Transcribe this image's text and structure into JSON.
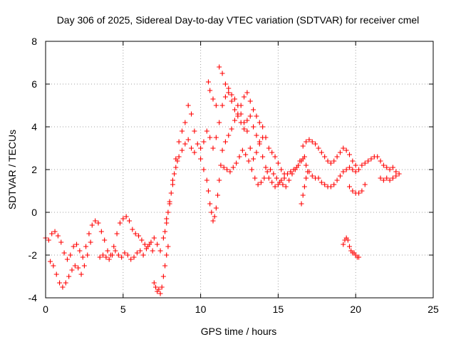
{
  "chart_data": {
    "type": "scatter",
    "title": "Day 306 of 2025, Sidereal Day-to-day VTEC variation (SDTVAR) for receiver cmel",
    "xlabel": "GPS time / hours",
    "ylabel": "SDTVAR / TECUs",
    "xlim": [
      0,
      25
    ],
    "ylim": [
      -4,
      8
    ],
    "xticks": [
      "0",
      "5",
      "10",
      "15",
      "20",
      "25"
    ],
    "yticks": [
      "-4",
      "-2",
      "0",
      "2",
      "4",
      "6",
      "8"
    ],
    "grid": true,
    "marker": "+",
    "color": "#ff0000",
    "series": [
      {
        "name": "SDTVAR",
        "points": [
          [
            0.0,
            -1.2
          ],
          [
            0.2,
            -1.3
          ],
          [
            0.4,
            -1.0
          ],
          [
            0.6,
            -0.9
          ],
          [
            0.8,
            -1.1
          ],
          [
            1.0,
            -1.4
          ],
          [
            1.2,
            -1.9
          ],
          [
            1.4,
            -2.2
          ],
          [
            1.6,
            -2.0
          ],
          [
            1.8,
            -1.6
          ],
          [
            2.0,
            -1.5
          ],
          [
            2.2,
            -1.8
          ],
          [
            2.4,
            -2.1
          ],
          [
            2.6,
            -1.6
          ],
          [
            2.8,
            -1.0
          ],
          [
            3.0,
            -0.6
          ],
          [
            3.2,
            -0.4
          ],
          [
            3.4,
            -0.5
          ],
          [
            3.6,
            -0.9
          ],
          [
            3.8,
            -1.3
          ],
          [
            4.0,
            -1.8
          ],
          [
            4.2,
            -2.0
          ],
          [
            4.4,
            -1.6
          ],
          [
            4.6,
            -1.0
          ],
          [
            4.8,
            -0.5
          ],
          [
            5.0,
            -0.3
          ],
          [
            5.2,
            -0.2
          ],
          [
            5.4,
            -0.4
          ],
          [
            5.6,
            -0.8
          ],
          [
            5.8,
            -1.0
          ],
          [
            6.0,
            -1.1
          ],
          [
            6.2,
            -1.3
          ],
          [
            6.4,
            -1.5
          ],
          [
            6.6,
            -1.6
          ],
          [
            6.8,
            -1.4
          ],
          [
            7.0,
            -1.2
          ],
          [
            7.2,
            -1.5
          ],
          [
            7.4,
            -1.8
          ],
          [
            7.6,
            -1.2
          ],
          [
            7.8,
            -0.3
          ],
          [
            8.0,
            0.5
          ],
          [
            8.2,
            1.5
          ],
          [
            8.4,
            2.5
          ],
          [
            8.6,
            3.3
          ],
          [
            8.8,
            3.8
          ],
          [
            9.0,
            4.2
          ],
          [
            9.2,
            5.0
          ],
          [
            9.4,
            4.6
          ],
          [
            9.6,
            3.8
          ],
          [
            9.8,
            3.2
          ],
          [
            10.0,
            3.0
          ],
          [
            10.2,
            3.3
          ],
          [
            10.4,
            3.8
          ],
          [
            10.6,
            3.5
          ],
          [
            10.8,
            3.0
          ],
          [
            11.0,
            3.5
          ],
          [
            11.2,
            4.2
          ],
          [
            11.4,
            5.0
          ],
          [
            11.6,
            5.4
          ],
          [
            11.8,
            5.6
          ],
          [
            12.0,
            5.5
          ],
          [
            12.2,
            5.3
          ],
          [
            12.4,
            5.0
          ],
          [
            12.6,
            4.6
          ],
          [
            12.8,
            4.2
          ],
          [
            13.0,
            3.8
          ],
          [
            13.2,
            3.0
          ],
          [
            13.4,
            2.5
          ],
          [
            13.6,
            2.8
          ],
          [
            13.8,
            3.2
          ],
          [
            14.0,
            2.6
          ],
          [
            14.2,
            2.1
          ],
          [
            14.4,
            1.6
          ],
          [
            14.6,
            1.4
          ],
          [
            14.8,
            1.2
          ],
          [
            15.0,
            1.3
          ],
          [
            15.2,
            1.5
          ],
          [
            15.4,
            1.6
          ],
          [
            15.6,
            1.8
          ],
          [
            15.8,
            1.9
          ],
          [
            16.0,
            2.0
          ],
          [
            16.2,
            2.1
          ],
          [
            16.4,
            2.4
          ],
          [
            16.6,
            2.5
          ],
          [
            16.8,
            2.2
          ],
          [
            17.0,
            1.9
          ],
          [
            17.2,
            1.7
          ],
          [
            17.4,
            1.6
          ],
          [
            17.6,
            1.6
          ],
          [
            17.8,
            1.4
          ],
          [
            18.0,
            1.3
          ],
          [
            18.2,
            1.2
          ],
          [
            18.4,
            1.2
          ],
          [
            18.6,
            1.3
          ],
          [
            18.8,
            1.5
          ],
          [
            19.0,
            1.7
          ],
          [
            19.2,
            1.9
          ],
          [
            19.4,
            2.0
          ],
          [
            19.6,
            2.1
          ],
          [
            19.8,
            2.0
          ],
          [
            20.0,
            1.9
          ],
          [
            20.2,
            2.0
          ],
          [
            20.4,
            2.2
          ],
          [
            20.6,
            2.3
          ],
          [
            20.8,
            2.4
          ],
          [
            21.0,
            2.5
          ],
          [
            21.2,
            2.6
          ],
          [
            21.4,
            2.6
          ],
          [
            21.6,
            2.4
          ],
          [
            21.8,
            2.2
          ],
          [
            22.0,
            2.1
          ],
          [
            22.2,
            2.0
          ],
          [
            22.4,
            2.1
          ],
          [
            22.6,
            1.9
          ],
          [
            22.8,
            1.8
          ],
          [
            0.3,
            -2.3
          ],
          [
            0.5,
            -2.5
          ],
          [
            0.7,
            -2.9
          ],
          [
            0.9,
            -3.3
          ],
          [
            1.1,
            -3.5
          ],
          [
            1.3,
            -3.3
          ],
          [
            1.5,
            -3.0
          ],
          [
            1.7,
            -2.7
          ],
          [
            1.9,
            -2.5
          ],
          [
            2.1,
            -2.6
          ],
          [
            2.3,
            -2.9
          ],
          [
            2.5,
            -2.5
          ],
          [
            2.7,
            -2.0
          ],
          [
            2.9,
            -1.4
          ],
          [
            3.5,
            -2.1
          ],
          [
            3.7,
            -2.0
          ],
          [
            3.9,
            -2.1
          ],
          [
            4.1,
            -2.2
          ],
          [
            4.3,
            -2.0
          ],
          [
            4.5,
            -1.8
          ],
          [
            4.7,
            -2.0
          ],
          [
            4.9,
            -2.1
          ],
          [
            5.1,
            -1.9
          ],
          [
            5.3,
            -2.0
          ],
          [
            5.5,
            -2.2
          ],
          [
            5.7,
            -2.1
          ],
          [
            5.9,
            -1.9
          ],
          [
            6.1,
            -1.8
          ],
          [
            6.3,
            -2.0
          ],
          [
            6.5,
            -1.7
          ],
          [
            6.7,
            -1.5
          ],
          [
            6.9,
            -1.8
          ],
          [
            7.0,
            -3.3
          ],
          [
            7.1,
            -3.5
          ],
          [
            7.2,
            -3.7
          ],
          [
            7.3,
            -3.6
          ],
          [
            7.4,
            -3.8
          ],
          [
            7.5,
            -3.5
          ],
          [
            7.6,
            -3.0
          ],
          [
            7.7,
            -2.5
          ],
          [
            7.8,
            -2.0
          ],
          [
            7.9,
            -1.6
          ],
          [
            7.7,
            -0.9
          ],
          [
            7.8,
            -0.5
          ],
          [
            7.9,
            0.0
          ],
          [
            8.0,
            0.4
          ],
          [
            8.1,
            0.9
          ],
          [
            8.2,
            1.3
          ],
          [
            8.3,
            1.8
          ],
          [
            8.4,
            2.1
          ],
          [
            8.5,
            2.4
          ],
          [
            8.6,
            2.6
          ],
          [
            8.8,
            2.9
          ],
          [
            9.0,
            3.2
          ],
          [
            9.2,
            3.4
          ],
          [
            9.4,
            3.0
          ],
          [
            9.6,
            2.8
          ],
          [
            10.0,
            2.5
          ],
          [
            10.2,
            2.0
          ],
          [
            10.4,
            1.5
          ],
          [
            10.5,
            1.0
          ],
          [
            10.6,
            0.4
          ],
          [
            10.7,
            0.0
          ],
          [
            10.8,
            -0.4
          ],
          [
            10.9,
            -0.2
          ],
          [
            11.0,
            0.2
          ],
          [
            11.1,
            0.8
          ],
          [
            11.2,
            1.5
          ],
          [
            11.3,
            2.2
          ],
          [
            11.4,
            2.9
          ],
          [
            11.6,
            3.3
          ],
          [
            11.8,
            3.6
          ],
          [
            12.0,
            3.9
          ],
          [
            12.2,
            4.3
          ],
          [
            12.4,
            4.5
          ],
          [
            12.6,
            4.2
          ],
          [
            12.8,
            3.9
          ],
          [
            13.0,
            4.3
          ],
          [
            13.2,
            4.5
          ],
          [
            13.4,
            4.0
          ],
          [
            13.6,
            3.6
          ],
          [
            13.8,
            3.3
          ],
          [
            14.0,
            3.5
          ],
          [
            10.5,
            6.1
          ],
          [
            10.6,
            5.7
          ],
          [
            10.8,
            5.3
          ],
          [
            11.0,
            5.0
          ],
          [
            11.2,
            6.8
          ],
          [
            11.4,
            6.5
          ],
          [
            11.6,
            6.0
          ],
          [
            11.8,
            5.8
          ],
          [
            12.0,
            5.2
          ],
          [
            12.2,
            4.8
          ],
          [
            12.4,
            4.6
          ],
          [
            12.6,
            5.0
          ],
          [
            12.8,
            5.4
          ],
          [
            13.0,
            5.6
          ],
          [
            13.2,
            5.2
          ],
          [
            13.4,
            4.8
          ],
          [
            13.6,
            4.5
          ],
          [
            13.8,
            4.2
          ],
          [
            14.0,
            4.0
          ],
          [
            14.2,
            3.5
          ],
          [
            14.4,
            3.0
          ],
          [
            14.6,
            2.8
          ],
          [
            14.8,
            2.6
          ],
          [
            15.0,
            2.3
          ],
          [
            15.2,
            2.0
          ],
          [
            15.4,
            1.8
          ],
          [
            11.5,
            2.1
          ],
          [
            11.7,
            2.0
          ],
          [
            11.9,
            1.9
          ],
          [
            12.1,
            2.1
          ],
          [
            12.3,
            2.3
          ],
          [
            12.5,
            2.6
          ],
          [
            12.7,
            2.9
          ],
          [
            12.9,
            2.7
          ],
          [
            13.1,
            2.4
          ],
          [
            13.3,
            2.0
          ],
          [
            13.5,
            1.6
          ],
          [
            13.7,
            1.3
          ],
          [
            13.9,
            1.4
          ],
          [
            14.1,
            1.6
          ],
          [
            14.3,
            1.9
          ],
          [
            14.5,
            2.0
          ],
          [
            14.7,
            1.8
          ],
          [
            14.9,
            1.6
          ],
          [
            15.1,
            1.4
          ],
          [
            15.3,
            1.3
          ],
          [
            15.5,
            1.2
          ],
          [
            15.7,
            1.5
          ],
          [
            15.9,
            1.8
          ],
          [
            16.1,
            2.0
          ],
          [
            16.3,
            2.2
          ],
          [
            16.5,
            2.4
          ],
          [
            16.7,
            2.6
          ],
          [
            16.6,
            3.1
          ],
          [
            16.8,
            3.3
          ],
          [
            17.0,
            3.4
          ],
          [
            17.2,
            3.3
          ],
          [
            17.4,
            3.2
          ],
          [
            17.6,
            3.0
          ],
          [
            17.8,
            2.8
          ],
          [
            18.0,
            2.6
          ],
          [
            18.2,
            2.4
          ],
          [
            18.4,
            2.3
          ],
          [
            18.6,
            2.4
          ],
          [
            18.8,
            2.6
          ],
          [
            19.0,
            2.8
          ],
          [
            19.2,
            3.0
          ],
          [
            19.4,
            2.9
          ],
          [
            19.6,
            2.7
          ],
          [
            19.8,
            2.4
          ],
          [
            20.0,
            2.2
          ],
          [
            16.5,
            0.4
          ],
          [
            16.6,
            0.8
          ],
          [
            16.7,
            1.2
          ],
          [
            16.8,
            1.6
          ],
          [
            16.9,
            1.9
          ],
          [
            19.2,
            -1.5
          ],
          [
            19.3,
            -1.3
          ],
          [
            19.4,
            -1.2
          ],
          [
            19.5,
            -1.3
          ],
          [
            19.6,
            -1.6
          ],
          [
            19.7,
            -1.8
          ],
          [
            19.8,
            -1.9
          ],
          [
            19.9,
            -1.9
          ],
          [
            20.0,
            -2.0
          ],
          [
            20.1,
            -2.1
          ],
          [
            20.2,
            -2.1
          ],
          [
            19.6,
            1.2
          ],
          [
            19.8,
            1.0
          ],
          [
            20.0,
            0.9
          ],
          [
            20.2,
            0.9
          ],
          [
            20.4,
            1.0
          ],
          [
            20.6,
            1.3
          ],
          [
            21.6,
            1.6
          ],
          [
            21.8,
            1.5
          ],
          [
            22.0,
            1.6
          ],
          [
            22.2,
            1.5
          ],
          [
            22.4,
            1.6
          ],
          [
            22.6,
            1.7
          ]
        ]
      }
    ]
  }
}
